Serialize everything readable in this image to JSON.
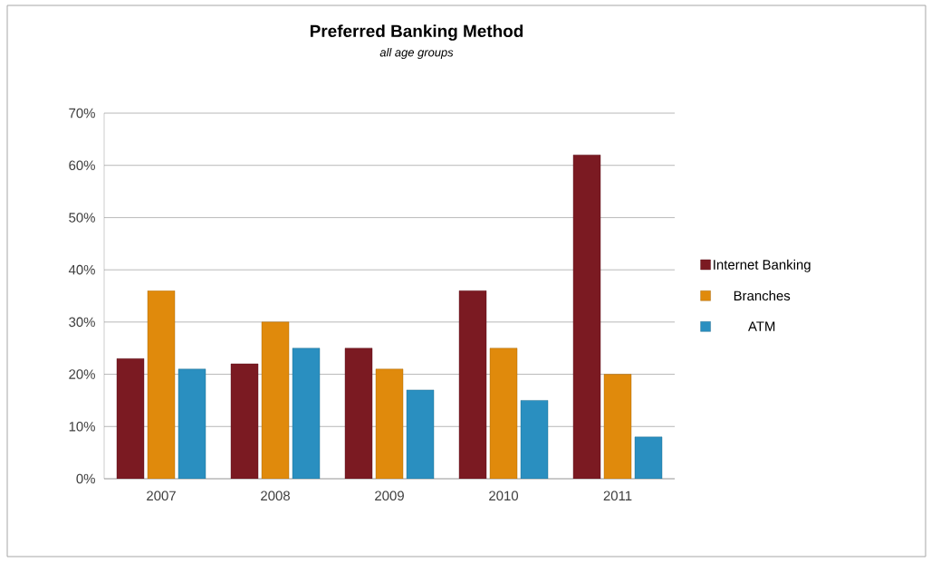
{
  "chart_data": {
    "type": "bar",
    "title": "Preferred Banking Method",
    "subtitle": "*all age groups*",
    "categories": [
      "2007",
      "2008",
      "2009",
      "2010",
      "2011"
    ],
    "series": [
      {
        "name": "Internet Banking",
        "color": "#7b1a22",
        "values": [
          23,
          22,
          25,
          36,
          62
        ]
      },
      {
        "name": "Branches",
        "color": "#e08a0c",
        "values": [
          36,
          30,
          21,
          25,
          20
        ]
      },
      {
        "name": "ATM",
        "color": "#2a8fc0",
        "values": [
          21,
          25,
          17,
          15,
          8
        ]
      }
    ],
    "ylim": [
      0,
      70
    ],
    "yticks": [
      {
        "value": 0,
        "label": "0%"
      },
      {
        "value": 10,
        "label": "10%"
      },
      {
        "value": 20,
        "label": "20%"
      },
      {
        "value": 30,
        "label": "30%"
      },
      {
        "value": 40,
        "label": "40%"
      },
      {
        "value": 50,
        "label": "50%"
      },
      {
        "value": 60,
        "label": "60%"
      },
      {
        "value": 70,
        "label": "70%"
      }
    ],
    "grid": "y",
    "legend": "right"
  }
}
